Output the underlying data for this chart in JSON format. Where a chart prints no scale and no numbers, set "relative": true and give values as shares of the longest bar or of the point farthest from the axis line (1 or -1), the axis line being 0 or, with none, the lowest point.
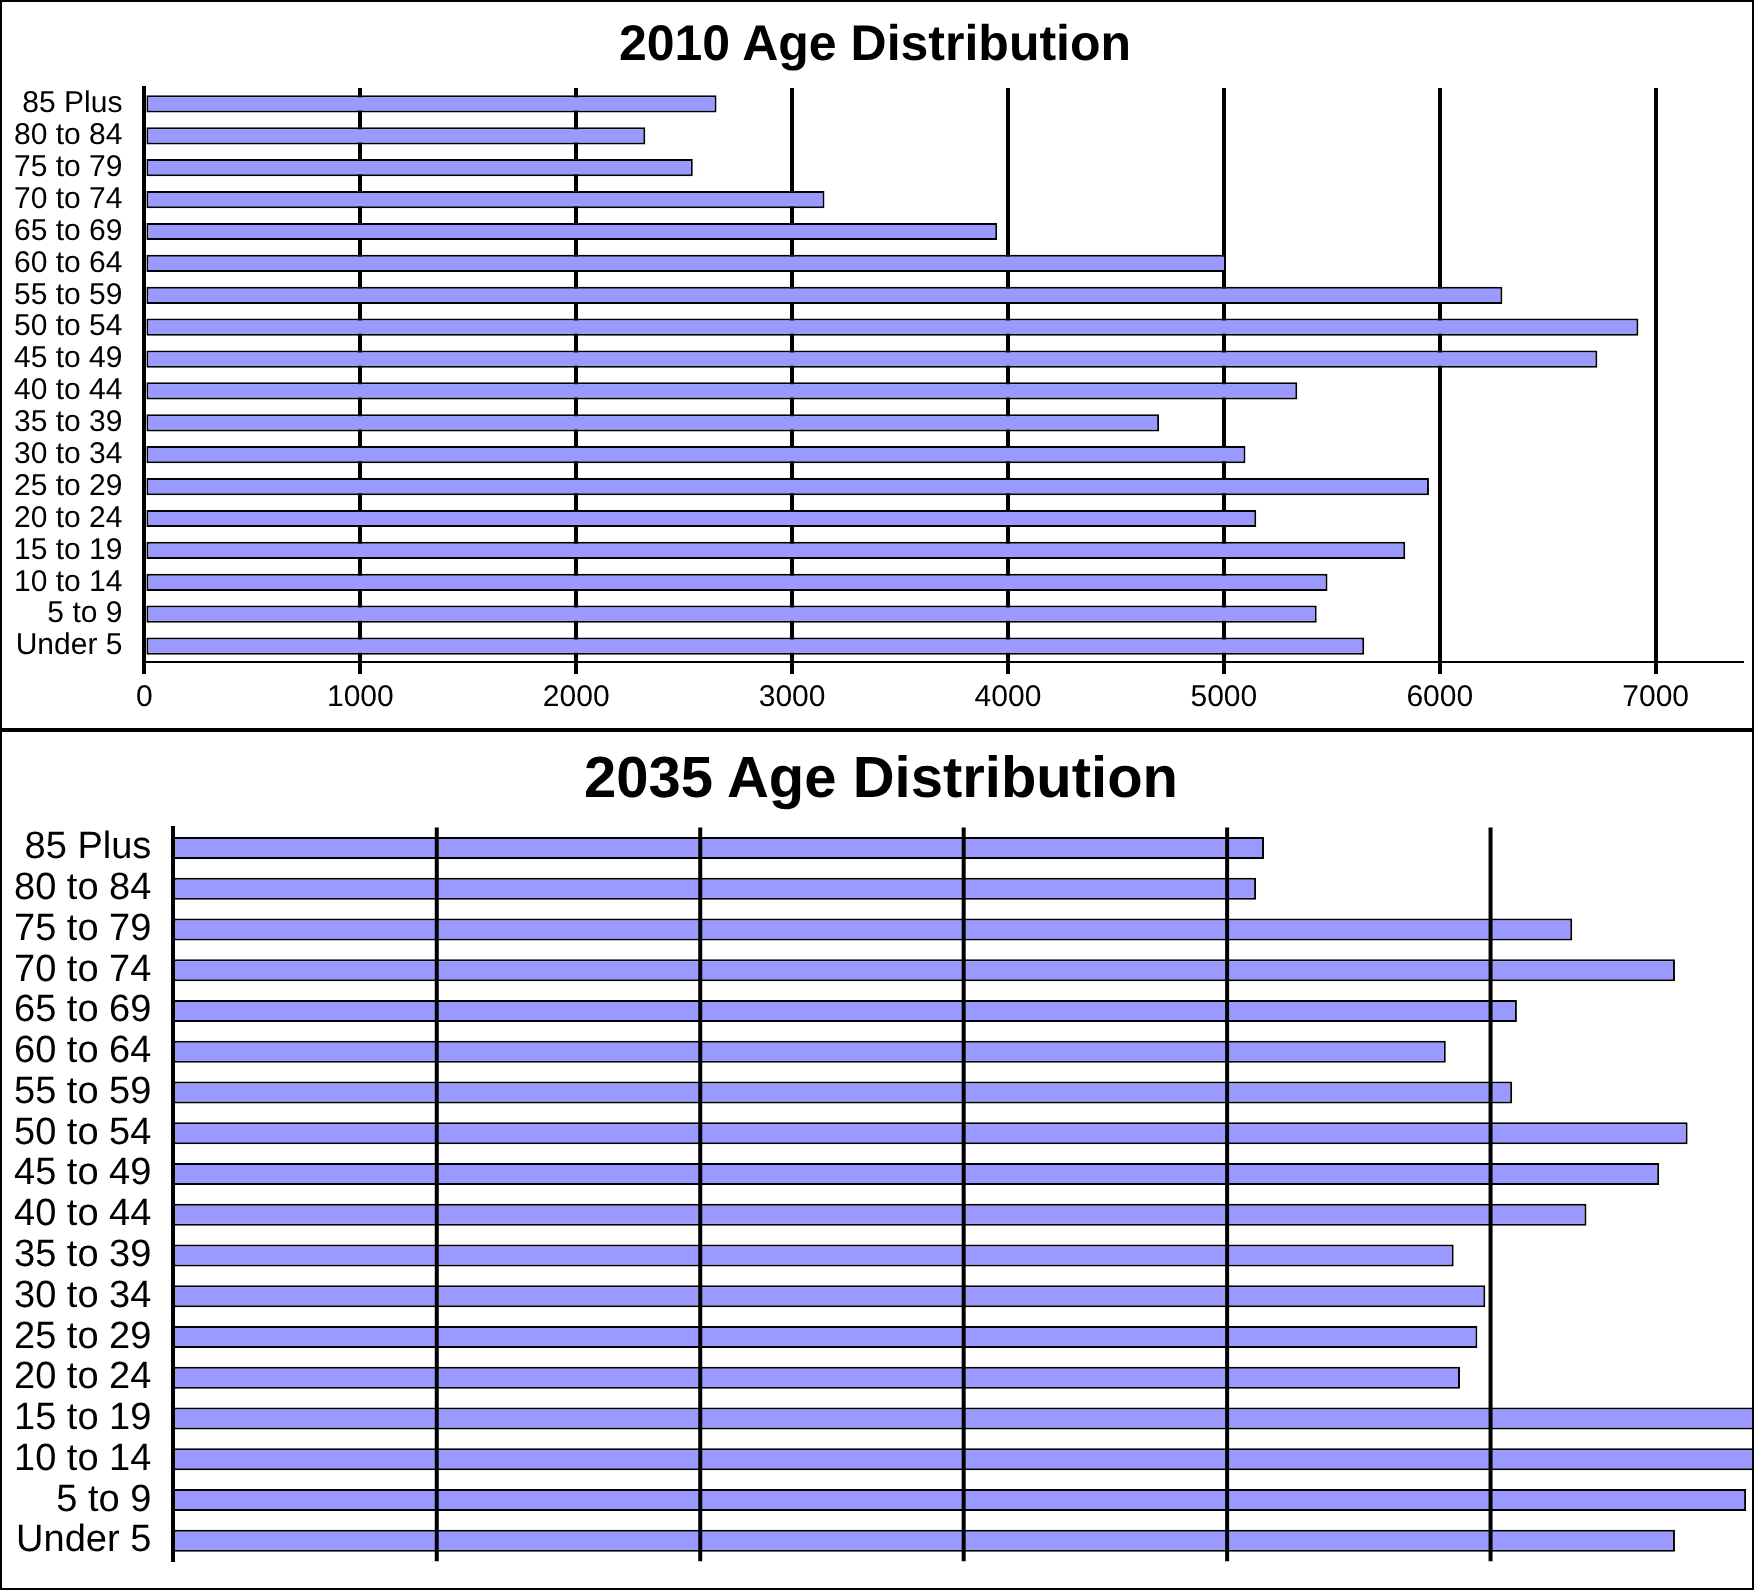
{
  "chart_data": [
    {
      "type": "bar",
      "orientation": "horizontal",
      "title": "2010 Age Distribution",
      "categories": [
        "85 Plus",
        "80 to 84",
        "75 to 79",
        "70 to 74",
        "65 to 69",
        "60 to 64",
        "55 to 59",
        "50 to 54",
        "45 to 49",
        "40 to 44",
        "35 to 39",
        "30 to 34",
        "25 to 29",
        "20 to 24",
        "15 to 19",
        "10 to 14",
        "5 to 9",
        "Under 5"
      ],
      "values": [
        2650,
        2320,
        2540,
        3150,
        3950,
        5010,
        6290,
        6920,
        6730,
        5340,
        4700,
        5100,
        5950,
        5150,
        5840,
        5480,
        5430,
        5650
      ],
      "color": "#9999ff",
      "xlim": [
        0,
        7400
      ],
      "xticks": [
        0,
        1000,
        2000,
        3000,
        4000,
        5000,
        6000,
        7000
      ],
      "grid": "x"
    },
    {
      "type": "bar",
      "orientation": "horizontal",
      "title": "2035 Age Distribution",
      "relative": true,
      "categories": [
        "85 Plus",
        "80 to 84",
        "75 to 79",
        "70 to 74",
        "65 to 69",
        "60 to 64",
        "55 to 59",
        "50 to 54",
        "45 to 49",
        "40 to 44",
        "35 to 39",
        "30 to 34",
        "25 to 29",
        "20 to 24",
        "15 to 19",
        "10 to 14",
        "5 to 9",
        "Under 5"
      ],
      "values": [
        0.69,
        0.685,
        0.885,
        0.95,
        0.85,
        0.805,
        0.847,
        0.958,
        0.94,
        0.894,
        0.81,
        0.83,
        0.825,
        0.814,
        1,
        1,
        0.995,
        0.95
      ],
      "color": "#9999ff",
      "grid": "x"
    }
  ]
}
